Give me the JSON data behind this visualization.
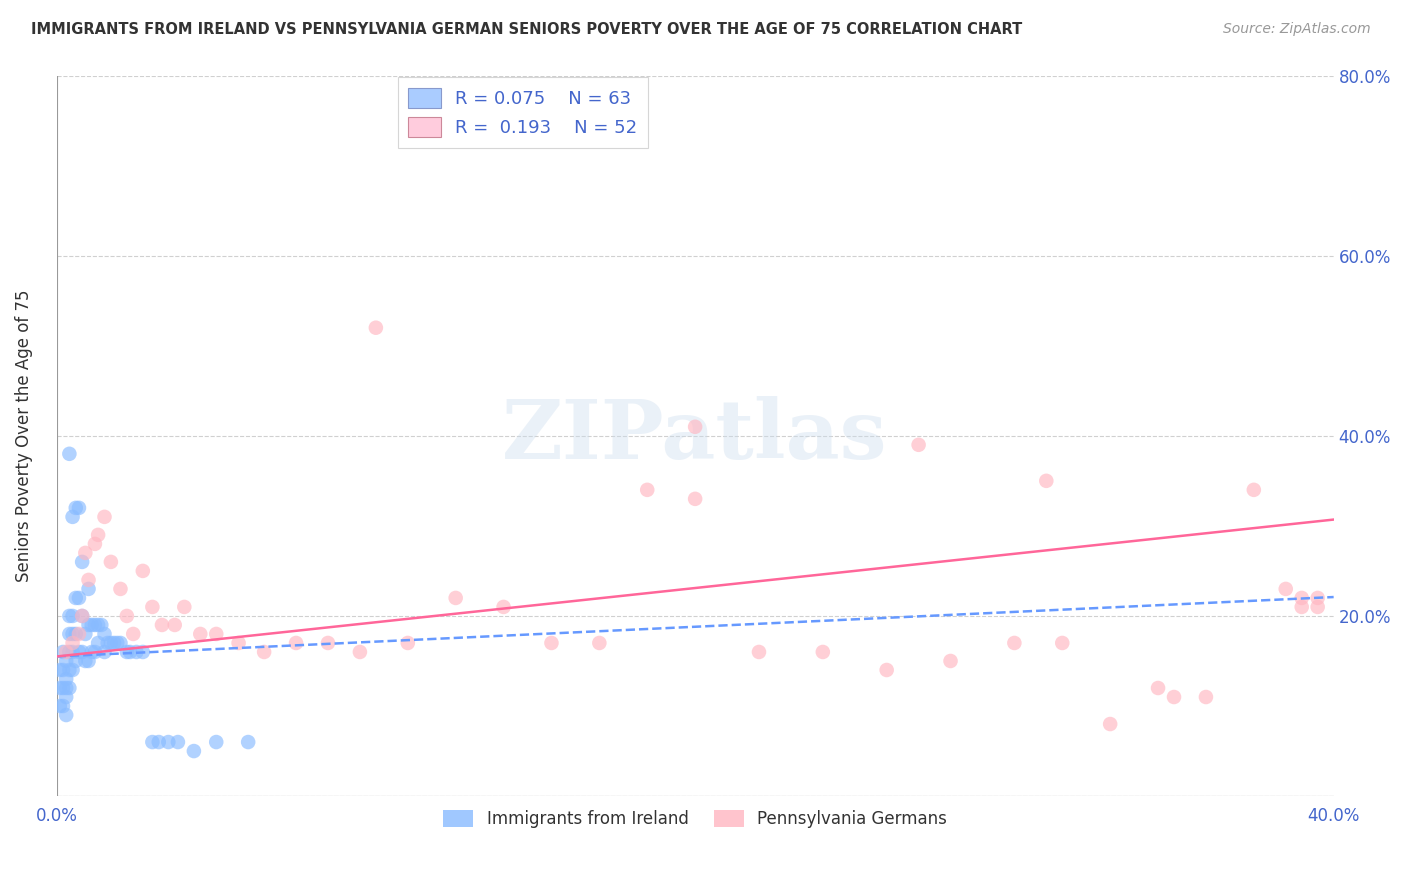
{
  "title": "IMMIGRANTS FROM IRELAND VS PENNSYLVANIA GERMAN SENIORS POVERTY OVER THE AGE OF 75 CORRELATION CHART",
  "source": "Source: ZipAtlas.com",
  "ylabel": "Seniors Poverty Over the Age of 75",
  "xlim": [
    0.0,
    0.4
  ],
  "ylim": [
    0.0,
    0.8
  ],
  "xticks": [
    0.0,
    0.1,
    0.2,
    0.3,
    0.4
  ],
  "yticks": [
    0.0,
    0.2,
    0.4,
    0.6,
    0.8
  ],
  "right_ytick_labels": [
    "",
    "20.0%",
    "40.0%",
    "60.0%",
    "80.0%"
  ],
  "left_ytick_labels": [
    "",
    "",
    "",
    "",
    ""
  ],
  "xtick_labels": [
    "0.0%",
    "",
    "",
    "",
    "40.0%"
  ],
  "background_color": "#ffffff",
  "grid_color": "#d0d0d0",
  "series1_color": "#88BBFF",
  "series2_color": "#FFB6C1",
  "series1_label": "Immigrants from Ireland",
  "series2_label": "Pennsylvania Germans",
  "r1": 0.075,
  "n1": 63,
  "r2": 0.193,
  "n2": 52,
  "trendline1_color": "#6699FF",
  "trendline2_color": "#FF6699",
  "watermark": "ZIPatlas",
  "scatter1_x": [
    0.001,
    0.001,
    0.001,
    0.002,
    0.002,
    0.002,
    0.002,
    0.003,
    0.003,
    0.003,
    0.003,
    0.003,
    0.004,
    0.004,
    0.004,
    0.004,
    0.004,
    0.004,
    0.005,
    0.005,
    0.005,
    0.005,
    0.005,
    0.006,
    0.006,
    0.006,
    0.006,
    0.007,
    0.007,
    0.007,
    0.008,
    0.008,
    0.008,
    0.009,
    0.009,
    0.01,
    0.01,
    0.01,
    0.011,
    0.011,
    0.012,
    0.012,
    0.013,
    0.013,
    0.014,
    0.015,
    0.015,
    0.016,
    0.017,
    0.018,
    0.019,
    0.02,
    0.022,
    0.023,
    0.025,
    0.027,
    0.03,
    0.032,
    0.035,
    0.038,
    0.043,
    0.05,
    0.06
  ],
  "scatter1_y": [
    0.14,
    0.12,
    0.1,
    0.16,
    0.14,
    0.12,
    0.1,
    0.15,
    0.13,
    0.12,
    0.11,
    0.09,
    0.38,
    0.2,
    0.18,
    0.16,
    0.14,
    0.12,
    0.31,
    0.2,
    0.18,
    0.16,
    0.14,
    0.32,
    0.22,
    0.18,
    0.15,
    0.32,
    0.22,
    0.16,
    0.26,
    0.2,
    0.16,
    0.18,
    0.15,
    0.23,
    0.19,
    0.15,
    0.19,
    0.16,
    0.19,
    0.16,
    0.19,
    0.17,
    0.19,
    0.18,
    0.16,
    0.17,
    0.17,
    0.17,
    0.17,
    0.17,
    0.16,
    0.16,
    0.16,
    0.16,
    0.06,
    0.06,
    0.06,
    0.06,
    0.05,
    0.06,
    0.06
  ],
  "scatter2_x": [
    0.003,
    0.005,
    0.007,
    0.008,
    0.009,
    0.01,
    0.012,
    0.013,
    0.015,
    0.017,
    0.02,
    0.022,
    0.024,
    0.027,
    0.03,
    0.033,
    0.037,
    0.04,
    0.045,
    0.05,
    0.057,
    0.065,
    0.075,
    0.085,
    0.095,
    0.11,
    0.125,
    0.14,
    0.155,
    0.17,
    0.185,
    0.2,
    0.22,
    0.24,
    0.26,
    0.28,
    0.3,
    0.315,
    0.33,
    0.345,
    0.36,
    0.375,
    0.385,
    0.39,
    0.395,
    0.1,
    0.2,
    0.27,
    0.31,
    0.35,
    0.39,
    0.395
  ],
  "scatter2_y": [
    0.16,
    0.17,
    0.18,
    0.2,
    0.27,
    0.24,
    0.28,
    0.29,
    0.31,
    0.26,
    0.23,
    0.2,
    0.18,
    0.25,
    0.21,
    0.19,
    0.19,
    0.21,
    0.18,
    0.18,
    0.17,
    0.16,
    0.17,
    0.17,
    0.16,
    0.17,
    0.22,
    0.21,
    0.17,
    0.17,
    0.34,
    0.33,
    0.16,
    0.16,
    0.14,
    0.15,
    0.17,
    0.17,
    0.08,
    0.12,
    0.11,
    0.34,
    0.23,
    0.21,
    0.22,
    0.52,
    0.41,
    0.39,
    0.35,
    0.11,
    0.22,
    0.21
  ]
}
